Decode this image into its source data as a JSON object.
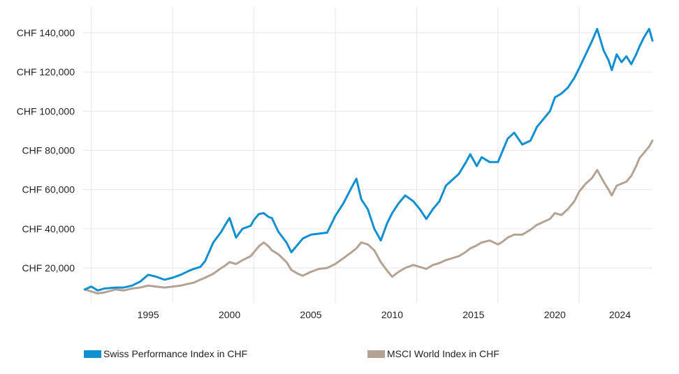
{
  "chart_data": {
    "type": "line",
    "title": "",
    "xlabel": "",
    "ylabel": "",
    "ylim": [
      0,
      150000
    ],
    "xlim": [
      1991.5,
      2026.5
    ],
    "grid": true,
    "legend_position": "bottom",
    "y_ticks": [
      20000,
      40000,
      60000,
      80000,
      100000,
      120000,
      140000
    ],
    "y_tick_labels": [
      "CHF 20,000",
      "CHF 40,000",
      "CHF 60,000",
      "CHF 80,000",
      "CHF 100,000",
      "CHF 120,000",
      "CHF 140,000"
    ],
    "x_ticks": [
      1995,
      2000,
      2005,
      2010,
      2015,
      2020,
      2024
    ],
    "x_tick_labels": [
      "1995",
      "2000",
      "2005",
      "2010",
      "2015",
      "2020",
      "2024"
    ],
    "series": [
      {
        "name": "Swiss Performance Index in CHF",
        "color": "#1090d0",
        "x": [
          1991.6,
          1992.0,
          1992.4,
          1992.8,
          1993.5,
          1994.0,
          1994.5,
          1995.0,
          1995.5,
          1996.0,
          1996.5,
          1997.0,
          1997.5,
          1998.0,
          1998.3,
          1998.7,
          1999.0,
          1999.5,
          2000.0,
          2000.2,
          2000.5,
          2000.9,
          2001.3,
          2001.8,
          2002.0,
          2002.3,
          2002.6,
          2002.9,
          2003.1,
          2003.5,
          2004.0,
          2004.3,
          2004.7,
          2005.0,
          2005.5,
          2006.0,
          2006.5,
          2007.0,
          2007.5,
          2008.0,
          2008.3,
          2008.6,
          2009.0,
          2009.4,
          2009.8,
          2010.2,
          2010.5,
          2010.9,
          2011.3,
          2011.8,
          2012.2,
          2012.6,
          2013.0,
          2013.4,
          2013.8,
          2014.2,
          2014.6,
          2015.0,
          2015.3,
          2015.7,
          2016.0,
          2016.5,
          2017.0,
          2017.3,
          2017.6,
          2018.0,
          2018.5,
          2019.0,
          2019.4,
          2019.8,
          2020.2,
          2020.5,
          2020.9,
          2021.3,
          2021.7,
          2022.0,
          2022.4,
          2022.8,
          2023.1,
          2023.5,
          2023.8,
          2024.0,
          2024.3,
          2024.6,
          2024.9,
          2025.2,
          2025.5,
          2025.7,
          2026.0,
          2026.3,
          2026.5
        ],
        "values": [
          9000,
          10500,
          8500,
          9500,
          10000,
          10000,
          11000,
          13000,
          16500,
          15500,
          14000,
          15000,
          16500,
          18500,
          19500,
          20500,
          23500,
          33000,
          38500,
          41500,
          45500,
          35500,
          40000,
          41500,
          44500,
          47500,
          48000,
          46000,
          45500,
          38500,
          33000,
          28000,
          32000,
          35000,
          37000,
          37500,
          38000,
          46500,
          53000,
          61000,
          65500,
          55000,
          50000,
          40000,
          34000,
          43000,
          48000,
          53000,
          57000,
          54000,
          50000,
          45000,
          50000,
          54000,
          62000,
          65000,
          68000,
          73500,
          78000,
          72000,
          76500,
          74000,
          74000,
          80000,
          86000,
          89000,
          83000,
          85000,
          92000,
          96000,
          100000,
          107000,
          109000,
          112000,
          117000,
          122000,
          129000,
          136000,
          142000,
          131000,
          126000,
          121000,
          129000,
          125000,
          128000,
          124000,
          129000,
          133000,
          138000,
          142000,
          136000
        ]
      },
      {
        "name": "MSCI World Index in CHF",
        "color": "#b3a394",
        "x": [
          1991.6,
          1992.0,
          1992.4,
          1992.8,
          1993.5,
          1994.0,
          1994.5,
          1995.0,
          1995.5,
          1996.0,
          1996.5,
          1997.0,
          1997.5,
          1998.0,
          1998.3,
          1998.7,
          1999.0,
          1999.5,
          2000.0,
          2000.2,
          2000.5,
          2000.9,
          2001.3,
          2001.8,
          2002.0,
          2002.3,
          2002.6,
          2002.9,
          2003.1,
          2003.5,
          2004.0,
          2004.3,
          2004.7,
          2005.0,
          2005.5,
          2006.0,
          2006.5,
          2007.0,
          2007.5,
          2008.0,
          2008.3,
          2008.6,
          2009.0,
          2009.4,
          2009.8,
          2010.2,
          2010.5,
          2010.9,
          2011.3,
          2011.8,
          2012.2,
          2012.6,
          2013.0,
          2013.4,
          2013.8,
          2014.2,
          2014.6,
          2015.0,
          2015.3,
          2015.7,
          2016.0,
          2016.5,
          2017.0,
          2017.3,
          2017.6,
          2018.0,
          2018.5,
          2019.0,
          2019.4,
          2019.8,
          2020.2,
          2020.5,
          2020.9,
          2021.3,
          2021.7,
          2022.0,
          2022.4,
          2022.8,
          2023.1,
          2023.5,
          2023.8,
          2024.0,
          2024.3,
          2024.6,
          2024.9,
          2025.2,
          2025.5,
          2025.7,
          2026.0,
          2026.3,
          2026.5
        ],
        "values": [
          9000,
          8000,
          7000,
          7500,
          9000,
          8500,
          9500,
          10000,
          11000,
          10500,
          10000,
          10500,
          11000,
          12000,
          12500,
          14000,
          15000,
          17000,
          20000,
          21000,
          23000,
          22000,
          24000,
          26000,
          28000,
          31000,
          33000,
          31000,
          29000,
          27000,
          23000,
          19000,
          17000,
          16000,
          18000,
          19500,
          20000,
          22000,
          25000,
          28000,
          30000,
          33000,
          32000,
          29000,
          23000,
          18500,
          15500,
          18000,
          20000,
          21500,
          20500,
          19500,
          21500,
          22500,
          24000,
          25000,
          26000,
          28000,
          30000,
          31500,
          33000,
          34000,
          32000,
          33500,
          35500,
          37000,
          37000,
          39500,
          42000,
          43500,
          45000,
          48000,
          47000,
          50000,
          54000,
          59000,
          63000,
          66000,
          70000,
          64000,
          60000,
          57000,
          62000,
          63000,
          64000,
          67000,
          72000,
          76000,
          79000,
          82000,
          85000
        ]
      }
    ]
  }
}
